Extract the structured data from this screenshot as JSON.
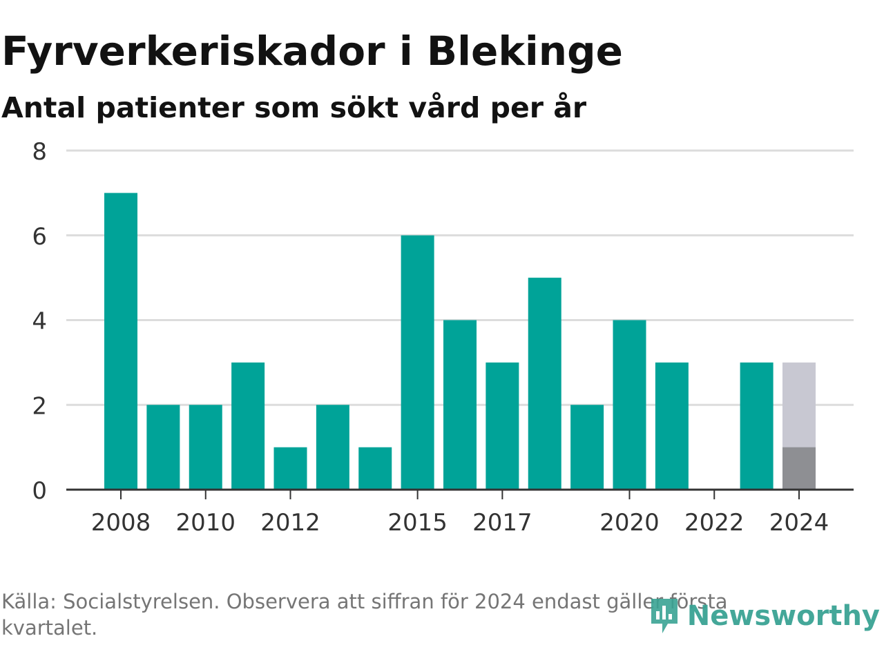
{
  "chart_data": {
    "type": "bar",
    "title": "Fyrverkeriskador i Blekinge",
    "subtitle": "Antal patienter som sökt vård per år",
    "categories": [
      "2008",
      "2009",
      "2010",
      "2011",
      "2012",
      "2013",
      "2014",
      "2015",
      "2016",
      "2017",
      "2018",
      "2019",
      "2020",
      "2021",
      "2022",
      "2023",
      "2024"
    ],
    "values": [
      7,
      2,
      2,
      3,
      1,
      2,
      1,
      6,
      4,
      3,
      5,
      2,
      4,
      3,
      0,
      3,
      1
    ],
    "partial_year_previous_value": {
      "category": "2024",
      "value": 3
    },
    "x_tick_labels": [
      "2008",
      "2010",
      "2012",
      "2015",
      "2017",
      "2020",
      "2022",
      "2024"
    ],
    "y_ticks": [
      0,
      2,
      4,
      6,
      8
    ],
    "ylim": [
      0,
      8
    ],
    "grid": true,
    "colors": {
      "bar": "#00a398",
      "partial_bar": "#8e8f93",
      "previous_value_bar": "#c8c8d2",
      "grid": "#dcdcdc",
      "axis": "#333333"
    }
  },
  "footer": {
    "source_note": "Källa: Socialstyrelsen. Observera att siffran för 2024 endast gäller första kvartalet.",
    "brand": "Newsworthy",
    "brand_icon": "newsworthy-logo-icon"
  }
}
